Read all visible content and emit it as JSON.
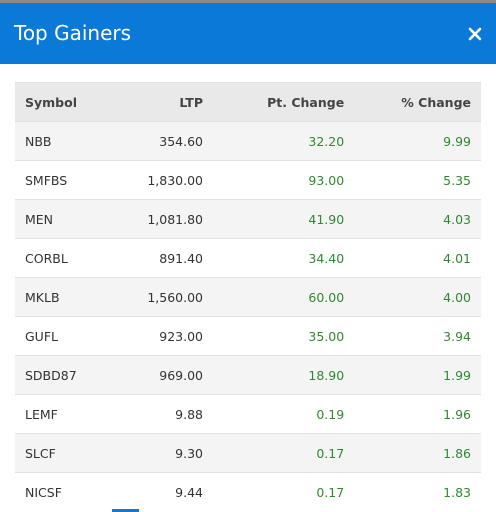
{
  "header": {
    "title": "Top Gainers"
  },
  "table": {
    "columns": [
      "Symbol",
      "LTP",
      "Pt. Change",
      "% Change"
    ],
    "rows": [
      [
        "NBB",
        "354.60",
        "32.20",
        "9.99"
      ],
      [
        "SMFBS",
        "1,830.00",
        "93.00",
        "5.35"
      ],
      [
        "MEN",
        "1,081.80",
        "41.90",
        "4.03"
      ],
      [
        "CORBL",
        "891.40",
        "34.40",
        "4.01"
      ],
      [
        "MKLB",
        "1,560.00",
        "60.00",
        "4.00"
      ],
      [
        "GUFL",
        "923.00",
        "35.00",
        "3.94"
      ],
      [
        "SDBD87",
        "969.00",
        "18.90",
        "1.99"
      ],
      [
        "LEMF",
        "9.88",
        "0.19",
        "1.96"
      ],
      [
        "SLCF",
        "9.30",
        "0.17",
        "1.86"
      ],
      [
        "NICSF",
        "9.44",
        "0.17",
        "1.83"
      ]
    ]
  }
}
